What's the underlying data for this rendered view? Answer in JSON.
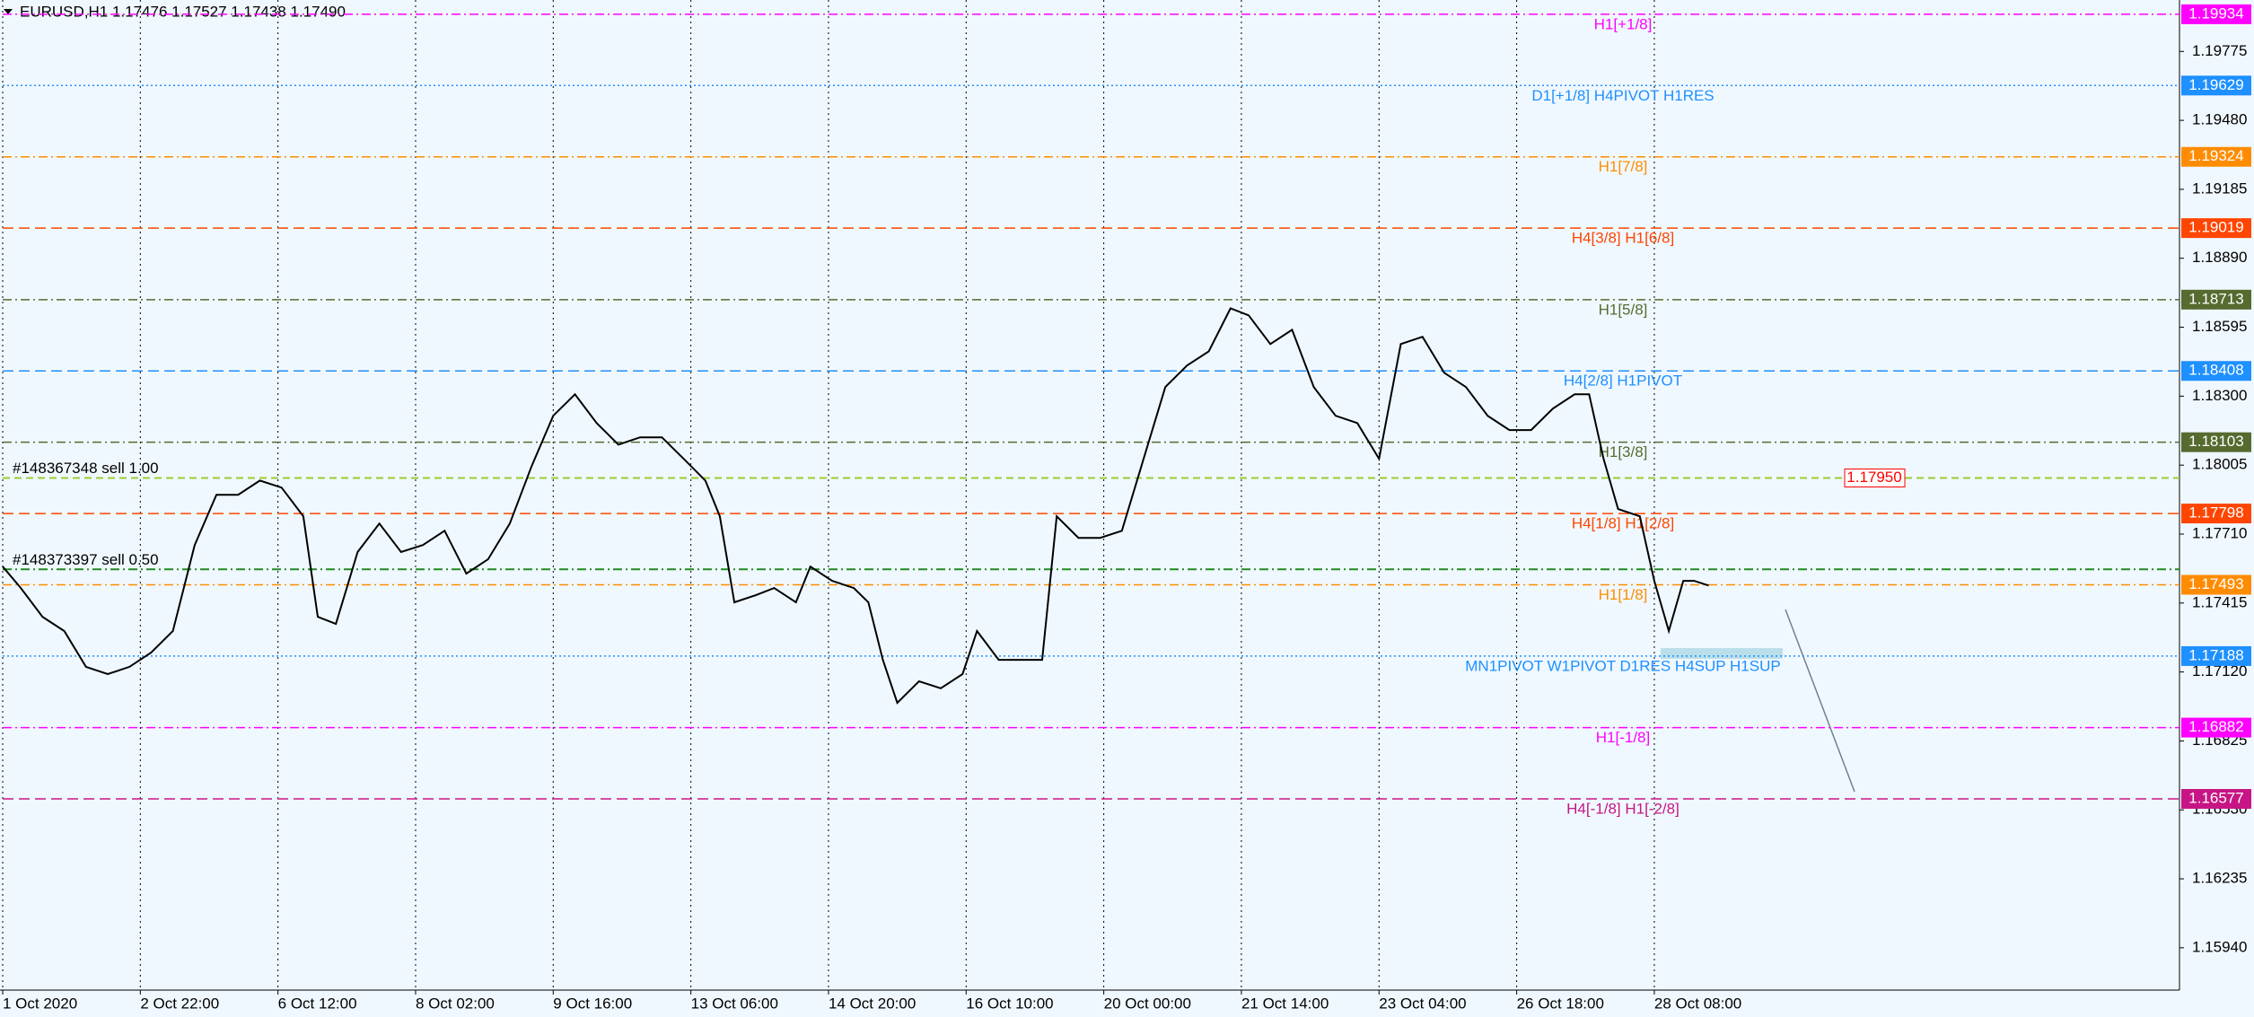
{
  "chart_data": {
    "type": "line",
    "title": "EURUSD,H1  1.17476 1.17527 1.17438 1.17490",
    "color": "#000000",
    "x": [
      0,
      5,
      11,
      17,
      23,
      29,
      35,
      41,
      47,
      53,
      59,
      65,
      71,
      77,
      83,
      87,
      92,
      98,
      104,
      110,
      116,
      122,
      128,
      134,
      140,
      146,
      152,
      158,
      164,
      170,
      176,
      182,
      188,
      194,
      198,
      202,
      208,
      213,
      219,
      223,
      229,
      235,
      239,
      243,
      247,
      253,
      259,
      265,
      269,
      275,
      281,
      287,
      291,
      297,
      303,
      309,
      315,
      321,
      327,
      333,
      339,
      344,
      350,
      356,
      362,
      368,
      374,
      380,
      386,
      392,
      398,
      404,
      410,
      416,
      422,
      428,
      434,
      438,
      442,
      446,
      452,
      456,
      460,
      464,
      467,
      471
    ],
    "values": [
      1.17571,
      1.17479,
      1.17356,
      1.17295,
      1.17142,
      1.17111,
      1.17142,
      1.17203,
      1.17295,
      1.17663,
      1.17878,
      1.17878,
      1.17939,
      1.17909,
      1.17786,
      1.17356,
      1.17326,
      1.17633,
      1.17755,
      1.17633,
      1.17663,
      1.17724,
      1.17541,
      1.17602,
      1.17755,
      1.17999,
      1.18216,
      1.18308,
      1.18185,
      1.18093,
      1.18124,
      1.18124,
      1.18032,
      1.17939,
      1.17786,
      1.17418,
      1.17449,
      1.17479,
      1.17418,
      1.17571,
      1.1751,
      1.17479,
      1.17418,
      1.17172,
      1.16988,
      1.1708,
      1.1705,
      1.17111,
      1.17295,
      1.17172,
      1.17172,
      1.17172,
      1.17786,
      1.17694,
      1.17694,
      1.17724,
      1.18032,
      1.18339,
      1.18431,
      1.18492,
      1.18676,
      1.18646,
      1.18523,
      1.18584,
      1.18339,
      1.18216,
      1.18185,
      1.18032,
      1.18523,
      1.18554,
      1.184,
      1.18339,
      1.18216,
      1.18155,
      1.18155,
      1.18247,
      1.18308,
      1.18308,
      1.18032,
      1.17817,
      1.17786,
      1.1751,
      1.17295,
      1.1751,
      1.1751,
      1.1749
    ],
    "xlim": [
      0,
      601
    ],
    "xticks": [
      {
        "value": 0,
        "label": "1 Oct 2020"
      },
      {
        "value": 38,
        "label": "2 Oct 22:00"
      },
      {
        "value": 76,
        "label": "6 Oct 12:00"
      },
      {
        "value": 114,
        "label": "8 Oct 02:00"
      },
      {
        "value": 152,
        "label": "9 Oct 16:00"
      },
      {
        "value": 190,
        "label": "13 Oct 06:00"
      },
      {
        "value": 228,
        "label": "14 Oct 20:00"
      },
      {
        "value": 266,
        "label": "16 Oct 10:00"
      },
      {
        "value": 304,
        "label": "20 Oct 00:00"
      },
      {
        "value": 342,
        "label": "21 Oct 14:00"
      },
      {
        "value": 380,
        "label": "23 Oct 04:00"
      },
      {
        "value": 418,
        "label": "26 Oct 18:00"
      },
      {
        "value": 456,
        "label": "28 Oct 08:00"
      }
    ],
    "ylim": [
      1.15759,
      1.19995
    ],
    "yticks": [
      1.19775,
      {
        "value": 1.1948,
        "label": "1.19480"
      },
      1.19185,
      {
        "value": 1.1889,
        "label": "1.18890"
      },
      1.18595,
      {
        "value": 1.183,
        "label": "1.18300"
      },
      1.18005,
      {
        "value": 1.1771,
        "label": "1.17710"
      },
      1.17415,
      {
        "value": 1.1712,
        "label": "1.17120"
      },
      1.16825,
      {
        "value": 1.1653,
        "label": "1.16530"
      },
      1.16235,
      {
        "value": 1.1594,
        "label": "1.15940"
      }
    ],
    "grid": true,
    "levels": [
      {
        "label": "H1[+1/8]",
        "price": 1.19934,
        "color": "#ff00ff",
        "dash": "dash-dot"
      },
      {
        "label": "D1[+1/8] H4PIVOT H1RES",
        "price": 1.19629,
        "color": "#1e90ff",
        "dash": "dotted"
      },
      {
        "label": "H1[7/8]",
        "price": 1.19324,
        "color": "#ff8c00",
        "dash": "dash-dot"
      },
      {
        "label": "H4[3/8] H1[6/8]",
        "price": 1.19019,
        "color": "#ff4500",
        "dash": "dashed"
      },
      {
        "label": "H1[5/8]",
        "price": 1.18713,
        "color": "#556b2f",
        "dash": "dash-dot"
      },
      {
        "label": "H4[2/8] H1PIVOT",
        "price": 1.18408,
        "color": "#1e90ff",
        "dash": "dashed"
      },
      {
        "label": "H1[3/8]",
        "price": 1.18103,
        "color": "#556b2f",
        "dash": "dash-dot"
      },
      {
        "label": "H4[1/8] H1[2/8]",
        "price": 1.17798,
        "color": "#ff4500",
        "dash": "dashed"
      },
      {
        "label": "H1[1/8]",
        "price": 1.17493,
        "color": "#ff8c00",
        "dash": "dash-dot"
      },
      {
        "label": "MN1PIVOT W1PIVOT D1RES H4SUP H1SUP",
        "price": 1.17188,
        "color": "#1e90ff",
        "dash": "dotted"
      },
      {
        "label": "H1[-1/8]",
        "price": 1.16882,
        "color": "#ff00ff",
        "dash": "dash-dot"
      },
      {
        "label": "H4[-1/8] H1[-2/8]",
        "price": 1.16577,
        "color": "#c71585",
        "dash": "dashed"
      }
    ],
    "orders": [
      {
        "label": "#148367348 sell 1.00",
        "price": 1.1795,
        "price_label": "1.17950",
        "color": "#9acd32"
      },
      {
        "label": "#148373397 sell 0.50",
        "price": 1.17559,
        "color": "#228b22"
      }
    ]
  }
}
